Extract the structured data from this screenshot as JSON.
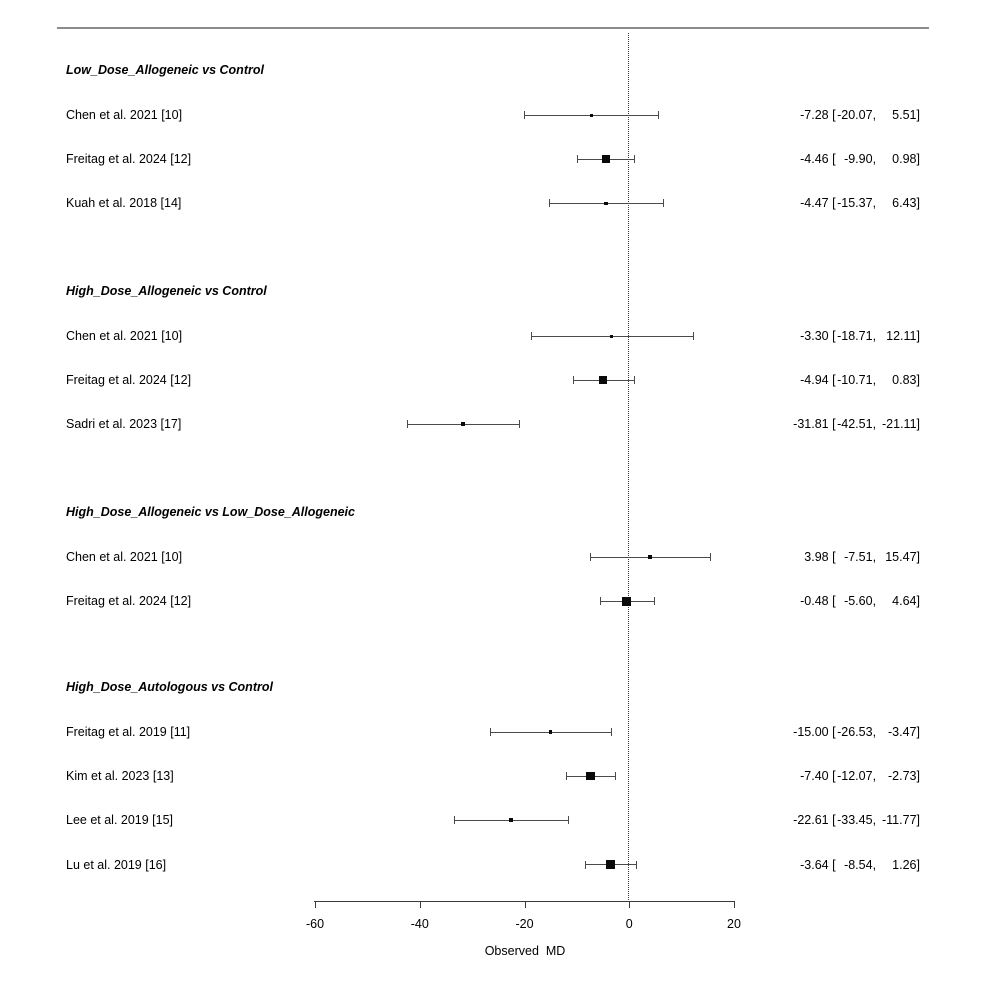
{
  "chart_data": {
    "type": "forest",
    "xlabel": "Observed  MD",
    "xlim": [
      -60,
      20
    ],
    "x_ticks": [
      -60,
      -40,
      -20,
      0,
      20
    ],
    "x_tick_labels": [
      "-60",
      "-40",
      "-20",
      "0",
      "20"
    ],
    "zero_reference_line": 0,
    "annotation_format": "estimate [lower, upper]",
    "groups": [
      {
        "label": "Low_Dose_Allogeneic vs Control",
        "studies": [
          {
            "label": "Chen et al. 2021 [10]",
            "md": -7.28,
            "ci_lower": -20.07,
            "ci_upper": 5.51,
            "marker_size": 3
          },
          {
            "label": "Freitag et al. 2024 [12]",
            "md": -4.46,
            "ci_lower": -9.9,
            "ci_upper": 0.98,
            "marker_size": 8
          },
          {
            "label": "Kuah et al. 2018 [14]",
            "md": -4.47,
            "ci_lower": -15.37,
            "ci_upper": 6.43,
            "marker_size": 3.5
          }
        ]
      },
      {
        "label": "High_Dose_Allogeneic vs Control",
        "studies": [
          {
            "label": "Chen et al. 2021 [10]",
            "md": -3.3,
            "ci_lower": -18.71,
            "ci_upper": 12.11,
            "marker_size": 3
          },
          {
            "label": "Freitag et al. 2024 [12]",
            "md": -4.94,
            "ci_lower": -10.71,
            "ci_upper": 0.83,
            "marker_size": 8
          },
          {
            "label": "Sadri et al. 2023 [17]",
            "md": -31.81,
            "ci_lower": -42.51,
            "ci_upper": -21.11,
            "marker_size": 4
          }
        ]
      },
      {
        "label": "High_Dose_Allogeneic vs Low_Dose_Allogeneic",
        "studies": [
          {
            "label": "Chen et al. 2021 [10]",
            "md": 3.98,
            "ci_lower": -7.51,
            "ci_upper": 15.47,
            "marker_size": 3.5
          },
          {
            "label": "Freitag et al. 2024 [12]",
            "md": -0.48,
            "ci_lower": -5.6,
            "ci_upper": 4.64,
            "marker_size": 9
          }
        ]
      },
      {
        "label": "High_Dose_Autologous vs Control",
        "studies": [
          {
            "label": "Freitag et al. 2019 [11]",
            "md": -15.0,
            "ci_lower": -26.53,
            "ci_upper": -3.47,
            "marker_size": 3.5
          },
          {
            "label": "Kim et al. 2023 [13]",
            "md": -7.4,
            "ci_lower": -12.07,
            "ci_upper": -2.73,
            "marker_size": 8.5
          },
          {
            "label": "Lee et al. 2019 [15]",
            "md": -22.61,
            "ci_lower": -33.45,
            "ci_upper": -11.77,
            "marker_size": 4
          },
          {
            "label": "Lu et al. 2019 [16]",
            "md": -3.64,
            "ci_lower": -8.54,
            "ci_upper": 1.26,
            "marker_size": 9
          }
        ]
      }
    ]
  }
}
